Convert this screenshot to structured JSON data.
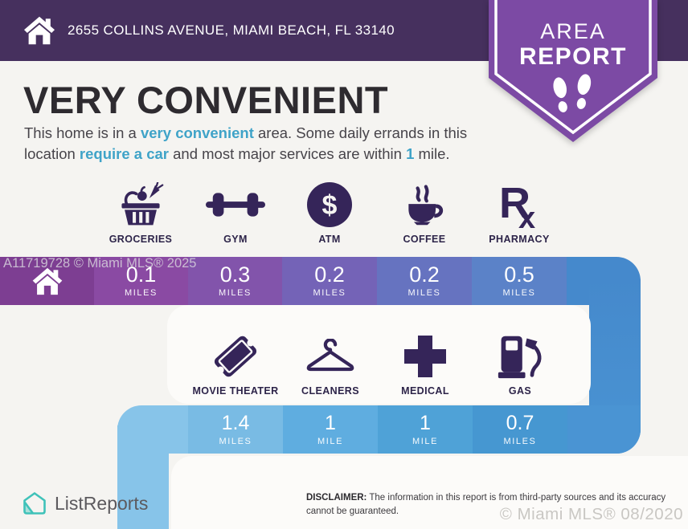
{
  "header": {
    "address": "2655 COLLINS AVENUE, MIAMI BEACH, FL 33140"
  },
  "badge": {
    "line1": "AREA",
    "line2": "REPORT"
  },
  "summary": {
    "title": "VERY CONVENIENT",
    "description_segments": [
      {
        "text": "This home is in a "
      },
      {
        "text": "very convenient",
        "hl": true
      },
      {
        "text": " area. Some daily errands in this location "
      },
      {
        "text": "require a car",
        "hl": true
      },
      {
        "text": " and most major services are within "
      },
      {
        "text": "1",
        "hl": true
      },
      {
        "text": " mile."
      }
    ]
  },
  "services_row1": [
    {
      "icon": "groceries-icon",
      "label": "GROCERIES"
    },
    {
      "icon": "gym-icon",
      "label": "GYM"
    },
    {
      "icon": "atm-icon",
      "label": "ATM"
    },
    {
      "icon": "coffee-icon",
      "label": "COFFEE"
    },
    {
      "icon": "pharmacy-icon",
      "label": "PHARMACY"
    }
  ],
  "services_row2": [
    {
      "icon": "movie-theater-icon",
      "label": "MOVIE THEATER"
    },
    {
      "icon": "cleaners-icon",
      "label": "CLEANERS"
    },
    {
      "icon": "medical-icon",
      "label": "MEDICAL"
    },
    {
      "icon": "gas-icon",
      "label": "GAS"
    }
  ],
  "distances_row1": [
    {
      "value": "0.1",
      "unit": "MILES"
    },
    {
      "value": "0.3",
      "unit": "MILES"
    },
    {
      "value": "0.2",
      "unit": "MILES"
    },
    {
      "value": "0.2",
      "unit": "MILES"
    },
    {
      "value": "0.5",
      "unit": "MILES"
    }
  ],
  "distances_row2": [
    {
      "value": "1.4",
      "unit": "MILES"
    },
    {
      "value": "1",
      "unit": "MILE"
    },
    {
      "value": "1",
      "unit": "MILE"
    },
    {
      "value": "0.7",
      "unit": "MILES"
    }
  ],
  "footer": {
    "brand": "ListReports",
    "disclaimer_label": "DISCLAIMER:",
    "disclaimer_text": " The information in this report is from third-party sources and its accuracy cannot be guaranteed."
  },
  "watermarks": {
    "band": "A11719728 © Miami MLS® 2025",
    "bottom": "© Miami MLS® 08/2020"
  },
  "colors": {
    "header_purple": "#46305e",
    "badge_purple": "#7c4aa4",
    "accent_teal": "#3fa3c8",
    "icon_purple": "#352559",
    "brand_teal": "#3fc2b9",
    "band_top": [
      "#7d3e92",
      "#8a4aa3",
      "#8254ab",
      "#7463b7",
      "#6673c0",
      "#5b82c8",
      "#4589cc"
    ],
    "band_bottom": [
      "#87c4e9",
      "#79bbe4",
      "#5fade0",
      "#4fa2d7",
      "#4697d1",
      "#4a94d3"
    ],
    "band_right_connector_top": "#4589cc",
    "band_right_connector_bottom": "#4a94d3",
    "band_left_connector": "#87c4e9"
  }
}
